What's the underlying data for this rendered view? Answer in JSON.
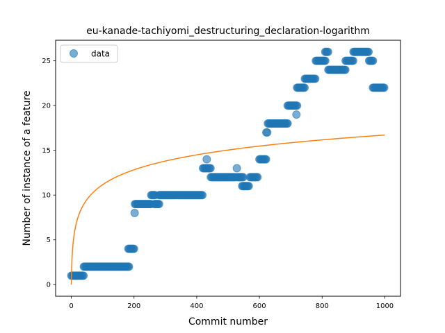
{
  "chart_data": {
    "type": "scatter",
    "title": "eu-kanade-tachiyomi_destructuring_declaration-logarithm",
    "xlabel": "Commit number",
    "ylabel": "Number of instance of a feature",
    "xlim": [
      -50,
      1050
    ],
    "ylim": [
      -1.3,
      27.3
    ],
    "xticks": [
      0,
      200,
      400,
      600,
      800,
      1000
    ],
    "yticks": [
      0,
      5,
      10,
      15,
      20,
      25
    ],
    "grid": false,
    "legend": {
      "position": "top-left",
      "entries": [
        "data"
      ]
    },
    "colors": {
      "data": "#1f77b4",
      "fit": "#ff7f0e"
    },
    "series": [
      {
        "name": "data",
        "kind": "scatter",
        "segments": [
          {
            "x_start": 0,
            "x_end": 40,
            "y": 1
          },
          {
            "x_start": 40,
            "x_end": 185,
            "y": 2
          },
          {
            "x_start": 182,
            "x_end": 200,
            "y": 4
          },
          {
            "x_start": 202,
            "x_end": 202,
            "y": 8
          },
          {
            "x_start": 203,
            "x_end": 255,
            "y": 9
          },
          {
            "x_start": 255,
            "x_end": 268,
            "y": 10
          },
          {
            "x_start": 265,
            "x_end": 280,
            "y": 9
          },
          {
            "x_start": 280,
            "x_end": 420,
            "y": 10
          },
          {
            "x_start": 420,
            "x_end": 445,
            "y": 13
          },
          {
            "x_start": 432,
            "x_end": 432,
            "y": 14
          },
          {
            "x_start": 445,
            "x_end": 525,
            "y": 12
          },
          {
            "x_start": 528,
            "x_end": 528,
            "y": 13
          },
          {
            "x_start": 530,
            "x_end": 550,
            "y": 12
          },
          {
            "x_start": 545,
            "x_end": 568,
            "y": 11
          },
          {
            "x_start": 570,
            "x_end": 595,
            "y": 12
          },
          {
            "x_start": 600,
            "x_end": 622,
            "y": 14
          },
          {
            "x_start": 622,
            "x_end": 627,
            "y": 17
          },
          {
            "x_start": 627,
            "x_end": 690,
            "y": 18
          },
          {
            "x_start": 690,
            "x_end": 720,
            "y": 20
          },
          {
            "x_start": 718,
            "x_end": 718,
            "y": 19
          },
          {
            "x_start": 720,
            "x_end": 745,
            "y": 22
          },
          {
            "x_start": 745,
            "x_end": 780,
            "y": 23
          },
          {
            "x_start": 780,
            "x_end": 810,
            "y": 25
          },
          {
            "x_start": 810,
            "x_end": 820,
            "y": 26
          },
          {
            "x_start": 820,
            "x_end": 875,
            "y": 24
          },
          {
            "x_start": 875,
            "x_end": 900,
            "y": 25
          },
          {
            "x_start": 900,
            "x_end": 950,
            "y": 26
          },
          {
            "x_start": 950,
            "x_end": 962,
            "y": 25
          },
          {
            "x_start": 962,
            "x_end": 1000,
            "y": 22
          }
        ]
      },
      {
        "name": "",
        "kind": "line",
        "function": "logarithm",
        "a": 2.4185,
        "x_range": [
          0,
          1000
        ],
        "points_y_at": {
          "0": 0,
          "200": 12.83,
          "400": 14.51,
          "600": 15.49,
          "800": 16.18,
          "1000": 16.72
        }
      }
    ]
  }
}
